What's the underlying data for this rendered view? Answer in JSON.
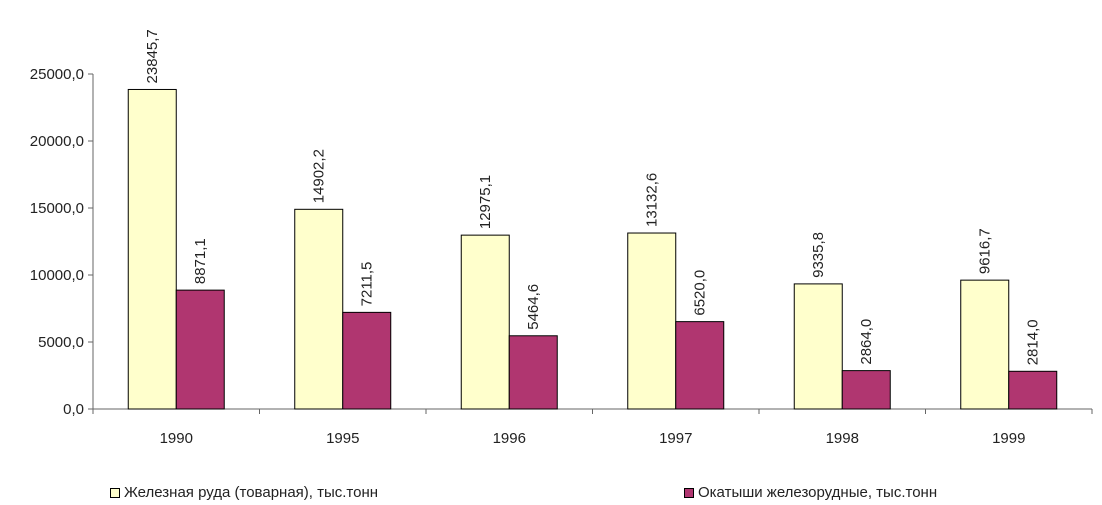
{
  "chart_data": {
    "type": "bar",
    "title": "",
    "xlabel": "",
    "ylabel": "",
    "categories": [
      "1990",
      "1995",
      "1996",
      "1997",
      "1998",
      "1999"
    ],
    "ylim": [
      0,
      25000
    ],
    "yticks": [
      "0,0",
      "5000,0",
      "10000,0",
      "15000,0",
      "20000,0",
      "25000,0"
    ],
    "grid": false,
    "legend_position": "bottom",
    "series": [
      {
        "name": "Железная руда (товарная), тыс.тонн",
        "values": [
          23845.7,
          14902.2,
          12975.1,
          13132.6,
          9335.8,
          9616.7
        ],
        "labels": [
          "23845,7",
          "14902,2",
          "12975,1",
          "13132,6",
          "9335,8",
          "9616,7"
        ],
        "color": "#FFFFCC",
        "stroke": "#000000"
      },
      {
        "name": "Окатыши железорудные, тыс.тонн",
        "values": [
          8871.1,
          7211.5,
          5464.6,
          6520.0,
          2864.0,
          2814.0
        ],
        "labels": [
          "8871,1",
          "7211,5",
          "5464,6",
          "6520,0",
          "2864,0",
          "2814,0"
        ],
        "color": "#B03670",
        "stroke": "#000000"
      }
    ]
  }
}
